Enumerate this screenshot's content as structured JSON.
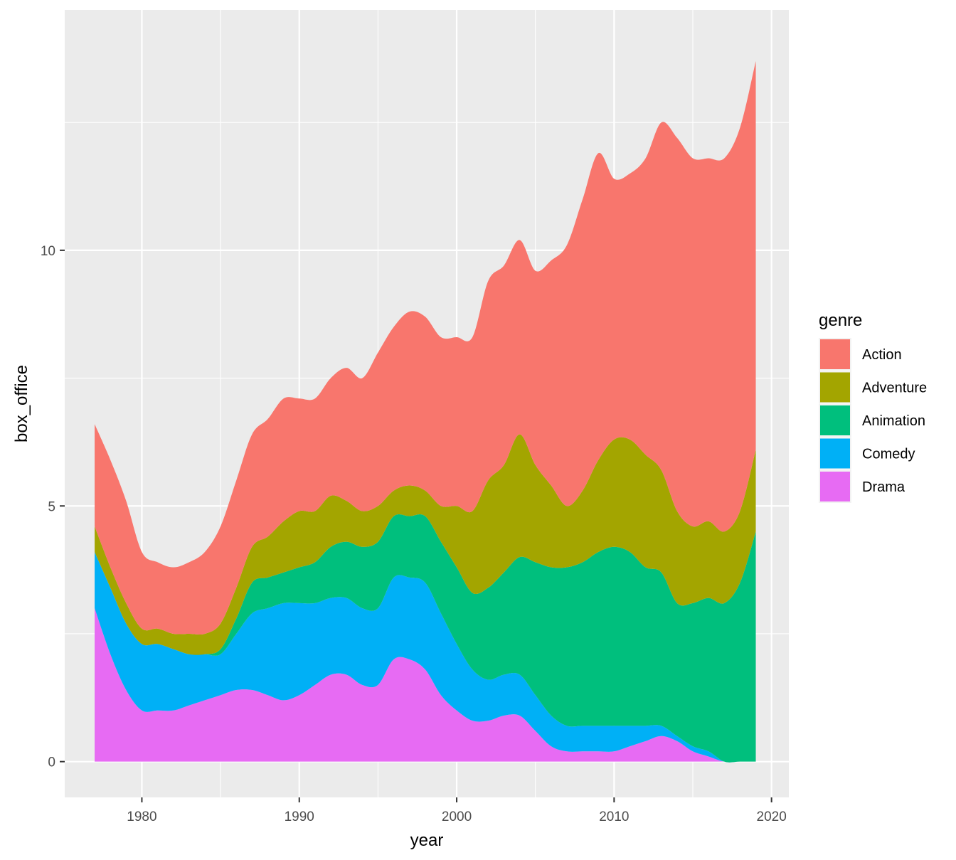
{
  "chart_data": {
    "type": "area",
    "stacked": true,
    "smoothed": true,
    "title": "",
    "xlabel": "year",
    "ylabel": "box_office",
    "xlim": [
      1975.1,
      2021.1
    ],
    "ylim": [
      -0.7,
      14.7
    ],
    "x_ticks": [
      1980,
      1990,
      2000,
      2010,
      2020
    ],
    "y_ticks": [
      0,
      5,
      10
    ],
    "x_tick_labels": [
      "1980",
      "1990",
      "2000",
      "2010",
      "2020"
    ],
    "y_tick_labels": [
      "0",
      "5",
      "10"
    ],
    "grid": true,
    "legend_title": "genre",
    "legend_position": "right",
    "x": [
      1977,
      1978,
      1979,
      1980,
      1981,
      1982,
      1983,
      1984,
      1985,
      1986,
      1987,
      1988,
      1989,
      1990,
      1991,
      1992,
      1993,
      1994,
      1995,
      1996,
      1997,
      1998,
      1999,
      2000,
      2001,
      2002,
      2003,
      2004,
      2005,
      2006,
      2007,
      2008,
      2009,
      2010,
      2011,
      2012,
      2013,
      2014,
      2015,
      2016,
      2017,
      2018,
      2019
    ],
    "series": [
      {
        "name": "Action",
        "color": "#F8766D",
        "values": [
          2.0,
          2.1,
          2.0,
          1.5,
          1.3,
          1.3,
          1.4,
          1.6,
          1.9,
          2.1,
          2.2,
          2.3,
          2.4,
          2.2,
          2.2,
          2.3,
          2.6,
          2.6,
          3.0,
          3.2,
          3.4,
          3.4,
          3.3,
          3.3,
          3.4,
          3.9,
          3.9,
          3.8,
          3.8,
          4.4,
          5.1,
          5.7,
          6.0,
          5.1,
          5.2,
          5.8,
          6.8,
          7.3,
          7.2,
          7.1,
          7.3,
          7.5,
          7.6
        ]
      },
      {
        "name": "Adventure",
        "color": "#A3A500",
        "values": [
          0.5,
          0.4,
          0.4,
          0.3,
          0.3,
          0.3,
          0.4,
          0.4,
          0.5,
          0.6,
          0.7,
          0.8,
          1.0,
          1.1,
          1.0,
          1.0,
          0.8,
          0.7,
          0.7,
          0.5,
          0.6,
          0.5,
          0.7,
          1.2,
          1.6,
          2.1,
          2.1,
          2.4,
          1.9,
          1.6,
          1.2,
          1.4,
          1.8,
          2.1,
          2.2,
          2.2,
          2.0,
          1.8,
          1.5,
          1.5,
          1.4,
          1.4,
          1.6
        ]
      },
      {
        "name": "Animation",
        "color": "#00BF7D",
        "values": [
          0.0,
          0.0,
          0.0,
          0.0,
          0.0,
          0.0,
          0.0,
          0.0,
          0.1,
          0.3,
          0.6,
          0.6,
          0.6,
          0.7,
          0.8,
          1.0,
          1.1,
          1.2,
          1.3,
          1.2,
          1.2,
          1.3,
          1.4,
          1.5,
          1.5,
          1.8,
          2.0,
          2.3,
          2.6,
          2.9,
          3.1,
          3.2,
          3.4,
          3.5,
          3.4,
          3.1,
          3.0,
          2.6,
          2.8,
          3.0,
          3.1,
          3.5,
          4.5
        ]
      },
      {
        "name": "Comedy",
        "color": "#00B0F6",
        "values": [
          1.1,
          1.3,
          1.3,
          1.3,
          1.3,
          1.2,
          1.0,
          0.9,
          0.8,
          1.1,
          1.5,
          1.7,
          1.9,
          1.8,
          1.6,
          1.5,
          1.5,
          1.5,
          1.5,
          1.6,
          1.6,
          1.7,
          1.6,
          1.3,
          1.0,
          0.8,
          0.8,
          0.8,
          0.7,
          0.6,
          0.5,
          0.5,
          0.5,
          0.5,
          0.4,
          0.3,
          0.2,
          0.1,
          0.1,
          0.1,
          0.0,
          0.0,
          0.0
        ]
      },
      {
        "name": "Drama",
        "color": "#E76BF3",
        "values": [
          3.0,
          2.1,
          1.4,
          1.0,
          1.0,
          1.0,
          1.1,
          1.2,
          1.3,
          1.4,
          1.4,
          1.3,
          1.2,
          1.3,
          1.5,
          1.7,
          1.7,
          1.5,
          1.5,
          2.0,
          2.0,
          1.8,
          1.3,
          1.0,
          0.8,
          0.8,
          0.9,
          0.9,
          0.6,
          0.3,
          0.2,
          0.2,
          0.2,
          0.2,
          0.3,
          0.4,
          0.5,
          0.4,
          0.2,
          0.1,
          0.0,
          0.0,
          0.0
        ]
      }
    ]
  }
}
